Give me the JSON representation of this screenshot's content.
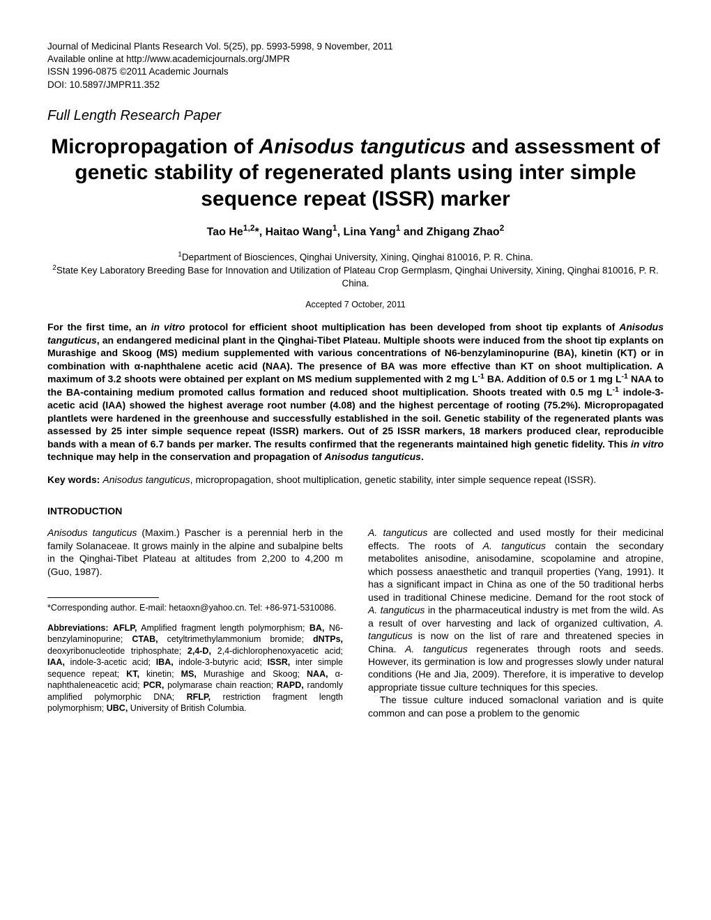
{
  "header": {
    "line1": "Journal of Medicinal Plants Research Vol. 5(25), pp. 5993-5998, 9 November, 2011",
    "line2": "Available online at http://www.academicjournals.org/JMPR",
    "line3": "ISSN 1996-0875 ©2011 Academic Journals",
    "line4": "DOI: 10.5897/JMPR11.352"
  },
  "paper_type": "Full Length Research Paper",
  "title": {
    "pre": "Micropropagation of ",
    "italic": "Anisodus tanguticus",
    "post": " and assessment of genetic stability of regenerated plants using inter simple sequence repeat (ISSR) marker"
  },
  "authors_html": "Tao He<sup>1,2</sup>*, Haitao Wang<sup>1</sup>, Lina Yang<sup>1</sup> and Zhigang Zhao<sup>2</sup>",
  "affiliations": {
    "a1": "Department of Biosciences, Qinghai University, Xining, Qinghai 810016, P. R. China.",
    "a2": "State Key Laboratory Breeding Base for Innovation and Utilization of Plateau Crop Germplasm, Qinghai University, Xining, Qinghai 810016, P. R. China."
  },
  "accepted": "Accepted 7 October, 2011",
  "abstract": {
    "p1a": "For the first time, an ",
    "p1b": "in vitro",
    "p1c": " protocol for efficient shoot multiplication has been developed from shoot tip explants of ",
    "p1d": "Anisodus tanguticus",
    "p1e": ", an endangered medicinal plant in the Qinghai-Tibet Plateau. Multiple shoots were induced from the shoot tip explants on Murashige and Skoog (MS) medium supplemented with various concentrations of N6-benzylaminopurine (BA), kinetin (KT) or in combination with α-naphthalene acetic acid (NAA). The presence of BA was more effective than KT on shoot multiplication. A maximum of 3.2 shoots were obtained per explant on MS medium supplemented with 2 mg L",
    "p1f": "-1",
    "p1g": " BA. Addition of 0.5 or 1 mg L",
    "p1h": "-1",
    "p1i": " NAA to the BA-containing medium promoted callus formation and reduced shoot multiplication. Shoots treated with 0.5 mg L",
    "p1j": "-1",
    "p1k": " indole-3-acetic acid (IAA) showed the highest average root number (4.08) and the highest percentage of rooting (75.2%). Micropropagated plantlets were hardened in the greenhouse and successfully established in the soil. Genetic stability of the regenerated plants was assessed by 25 inter simple sequence repeat (ISSR) markers. Out of 25 ISSR markers, 18 markers produced clear, reproducible bands with a mean of 6.7 bands per marker. The results confirmed that the regenerants maintained high genetic fidelity. This ",
    "p1l": "in vitro",
    "p1m": " technique may help in the conservation and propagation of ",
    "p1n": "Anisodus tanguticus",
    "p1o": "."
  },
  "keywords": {
    "label": "Key words:",
    "italic1": "Anisodus tanguticus",
    "rest": ", micropropagation, shoot multiplication, genetic stability, inter simple sequence repeat (ISSR)."
  },
  "intro_heading": "INTRODUCTION",
  "col1": {
    "p1a": "Anisodus tanguticus",
    "p1b": " (Maxim.) Pascher is a perennial herb in the family Solanaceae. It grows mainly in the alpine and subalpine belts in the Qinghai-Tibet Plateau at altitudes from 2,200 to 4,200 m (Guo, 1987)."
  },
  "corresponding": "*Corresponding author. E-mail: hetaoxn@yahoo.cn. Tel: +86-971-5310086.",
  "abbreviations": {
    "label": "Abbreviations:",
    "items": [
      {
        "abbr": "AFLP,",
        "def": "Amplified fragment length polymorphism;"
      },
      {
        "abbr": "BA,",
        "def": "N6-benzylaminopurine;"
      },
      {
        "abbr": "CTAB,",
        "def": "cetyltrimethylammonium bromide;"
      },
      {
        "abbr": "dNTPs,",
        "def": "deoxyribonucleotide triphosphate;"
      },
      {
        "abbr": "2,4-D,",
        "def": "2,4-dichlorophenoxyacetic acid;"
      },
      {
        "abbr": "IAA,",
        "def": "indole-3-acetic acid;"
      },
      {
        "abbr": "IBA,",
        "def": "indole-3-butyric acid;"
      },
      {
        "abbr": "ISSR,",
        "def": "inter simple sequence repeat;"
      },
      {
        "abbr": "KT,",
        "def": "kinetin;"
      },
      {
        "abbr": "MS,",
        "def": "Murashige and Skoog;"
      },
      {
        "abbr": "NAA,",
        "def": "α-naphthaleneacetic acid;"
      },
      {
        "abbr": "PCR,",
        "def": "polymarase chain reaction;"
      },
      {
        "abbr": "RAPD,",
        "def": "randomly amplified polymorphic DNA;"
      },
      {
        "abbr": "RFLP,",
        "def": "restriction fragment length polymorphism;"
      },
      {
        "abbr": "UBC,",
        "def": "University of British Columbia."
      }
    ]
  },
  "col2": {
    "p1a": "A. tanguticus",
    "p1b": " are collected and used mostly for their medicinal effects. The roots of ",
    "p1c": "A. tanguticus",
    "p1d": " contain the secondary metabolites anisodine, anisodamine, scopolamine and atropine, which possess anaesthetic and tranquil properties (Yang, 1991). It has a significant impact in China as one of the 50 traditional herbs used in traditional Chinese medicine. Demand for the root stock of ",
    "p1e": "A. tanguticus",
    "p1f": " in the pharmaceutical industry is met from the wild. As a result of over harvesting and lack of organized cultivation, ",
    "p1g": "A. tanguticus",
    "p1h": " is now on the list of rare and threatened species in China. ",
    "p1i": "A. tanguticus",
    "p1j": " regenerates through roots and seeds. However, its germination is low and progresses slowly under natural conditions (He and Jia, 2009). Therefore, it is imperative to develop appropriate tissue culture techniques for this species.",
    "p2": "The tissue culture induced somaclonal variation and is quite common and can pose a problem to the genomic"
  }
}
